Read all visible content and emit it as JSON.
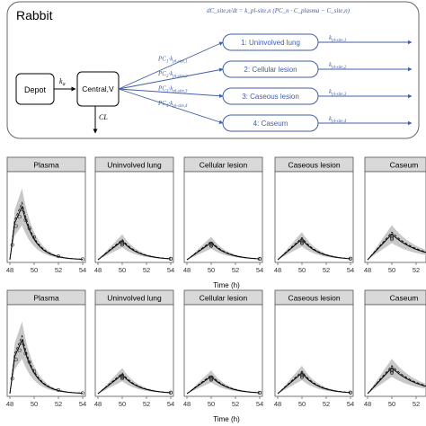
{
  "model": {
    "species": "Rabbit",
    "equation": "dC_site,n/dt = k_pl-site,n (PC_n · C_plasma − C_site,n)",
    "depot": "Depot",
    "ka": "k",
    "ka_sub": "a",
    "central": "Central,V",
    "cl": "CL",
    "sites": [
      {
        "label": "1: Uninvolved lung",
        "pc": "PC",
        "pc_sub": "1",
        "k_in": "k",
        "k_in_sub": "pl-site,1",
        "k_out": "k",
        "k_out_sub": "pl-site,1"
      },
      {
        "label": "2: Cellular lesion",
        "pc": "PC",
        "pc_sub": "2",
        "k_in": "k",
        "k_in_sub": "pl-site,2",
        "k_out": "k",
        "k_out_sub": "pl-site,2"
      },
      {
        "label": "3: Caseous lesion",
        "pc": "PC",
        "pc_sub": "3",
        "k_in": "k",
        "k_in_sub": "pl-site,3",
        "k_out": "k",
        "k_out_sub": "pl-site,3"
      },
      {
        "label": "4: Caseum",
        "pc": "PC",
        "pc_sub": "4",
        "k_in": "k",
        "k_in_sub": "pl-site,4",
        "k_out": "k",
        "k_out_sub": "pl-site,4"
      }
    ]
  },
  "colors": {
    "arrow": "#3f5fa8",
    "band": "#c8c8c8",
    "strip": "#d9d9d9"
  },
  "panels": {
    "titles": [
      "Plasma",
      "Uninvolved lung",
      "Cellular lesion",
      "Caseous lesion",
      "Caseum"
    ],
    "x_ticks": [
      "48",
      "50",
      "52",
      "54"
    ],
    "x_label": "Time (h)"
  }
}
